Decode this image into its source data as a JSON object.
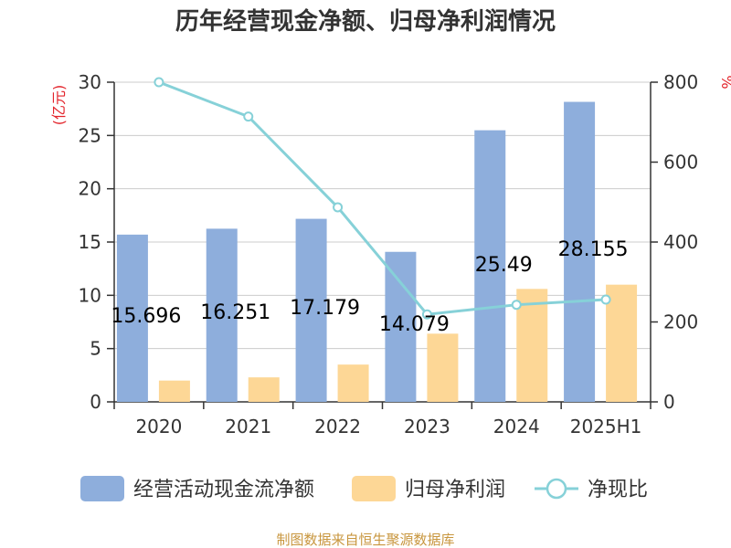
{
  "title": "历年经营现金净额、归母净利润情况",
  "source": "制图数据来自恒生聚源数据库",
  "colors": {
    "cash": "#8eaedc",
    "profit": "#fdd796",
    "ratio": "#86d1d8",
    "grid": "#cccccc",
    "unit": "#e3242b",
    "source": "#c8963e"
  },
  "legend": [
    {
      "key": "cash",
      "label": "经营活动现金流净额",
      "marker": "rect"
    },
    {
      "key": "profit",
      "label": "归母净利润",
      "marker": "rect"
    },
    {
      "key": "ratio",
      "label": "净现比",
      "marker": "line-circle"
    }
  ],
  "chart_data": {
    "type": "bar",
    "title": "历年经营现金净额、归母净利润情况",
    "categories": [
      "2020",
      "2021",
      "2022",
      "2023",
      "2024",
      "2025H1"
    ],
    "left_axis": {
      "unit_label": "(亿元)",
      "ylim": [
        0,
        30
      ],
      "ticks": [
        "0",
        "5",
        "10",
        "15",
        "20",
        "25",
        "30"
      ]
    },
    "right_axis": {
      "unit_label": "%",
      "ylim": [
        0,
        800
      ],
      "ticks": [
        "0",
        "200",
        "400",
        "600",
        "800"
      ]
    },
    "grid": true,
    "legend_position": "bottom",
    "series": [
      {
        "name": "经营活动现金流净额",
        "type": "bar",
        "axis": "left",
        "values": [
          15.696,
          16.251,
          17.179,
          14.079,
          25.49,
          28.155
        ],
        "labels": [
          "15.696",
          "16.251",
          "17.179",
          "14.079",
          "25.49",
          "28.155"
        ]
      },
      {
        "name": "归母净利润",
        "type": "bar",
        "axis": "left",
        "values": [
          2.0,
          2.3,
          3.5,
          6.4,
          10.6,
          11.0
        ]
      },
      {
        "name": "净现比",
        "type": "line",
        "axis": "right",
        "values": [
          800,
          714,
          487,
          219,
          243,
          256
        ]
      }
    ]
  }
}
